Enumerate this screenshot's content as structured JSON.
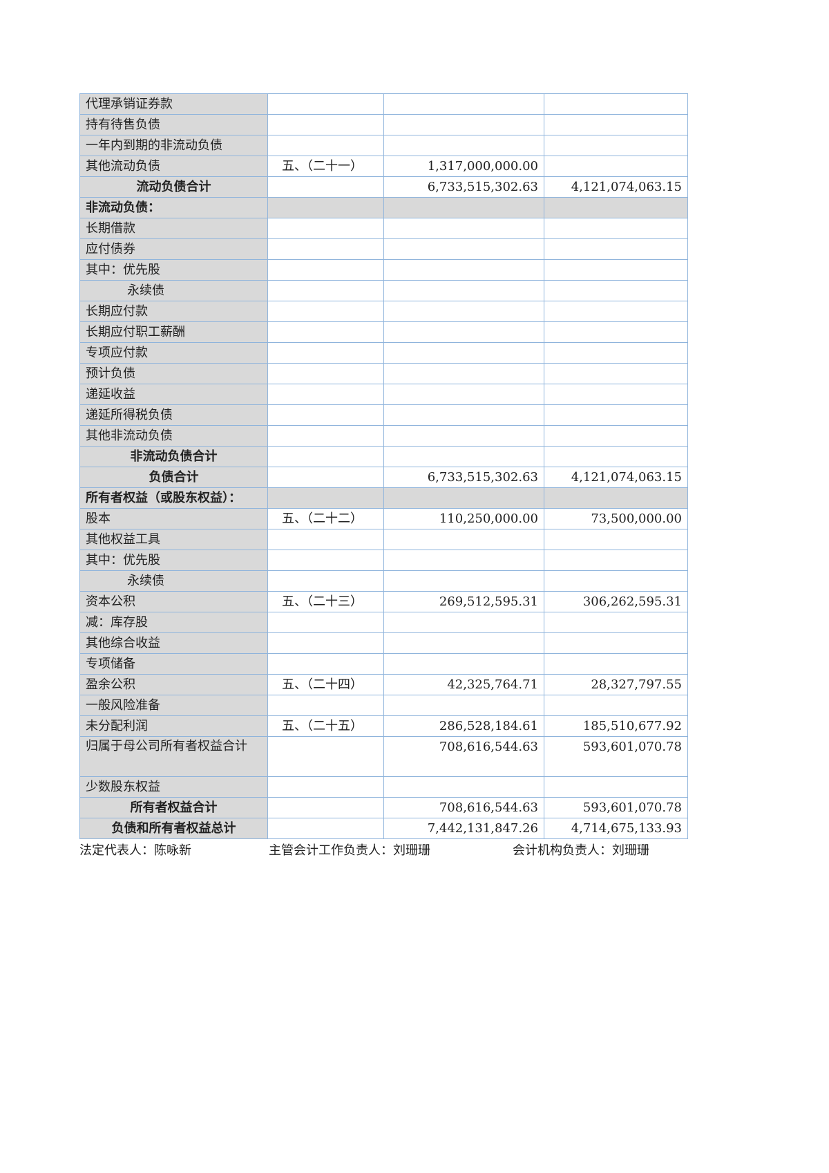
{
  "rows": [
    {
      "label": "代理承销证券款",
      "note": "",
      "current": "",
      "prior": "",
      "type": "normal"
    },
    {
      "label": "持有待售负债",
      "note": "",
      "current": "",
      "prior": "",
      "type": "normal"
    },
    {
      "label": "一年内到期的非流动负债",
      "note": "",
      "current": "",
      "prior": "",
      "type": "normal"
    },
    {
      "label": "其他流动负债",
      "note": "五、（二十一）",
      "current": "1,317,000,000.00",
      "prior": "",
      "type": "normal"
    },
    {
      "label": "流动负债合计",
      "note": "",
      "current": "6,733,515,302.63",
      "prior": "4,121,074,063.15",
      "type": "total"
    },
    {
      "label": "非流动负债：",
      "note": "",
      "current": "",
      "prior": "",
      "type": "section"
    },
    {
      "label": "长期借款",
      "note": "",
      "current": "",
      "prior": "",
      "type": "normal"
    },
    {
      "label": "应付债券",
      "note": "",
      "current": "",
      "prior": "",
      "type": "normal"
    },
    {
      "label": "其中：优先股",
      "note": "",
      "current": "",
      "prior": "",
      "type": "normal"
    },
    {
      "label": "永续债",
      "note": "",
      "current": "",
      "prior": "",
      "type": "indent"
    },
    {
      "label": "长期应付款",
      "note": "",
      "current": "",
      "prior": "",
      "type": "normal"
    },
    {
      "label": "长期应付职工薪酬",
      "note": "",
      "current": "",
      "prior": "",
      "type": "normal"
    },
    {
      "label": "专项应付款",
      "note": "",
      "current": "",
      "prior": "",
      "type": "normal"
    },
    {
      "label": "预计负债",
      "note": "",
      "current": "",
      "prior": "",
      "type": "normal"
    },
    {
      "label": "递延收益",
      "note": "",
      "current": "",
      "prior": "",
      "type": "normal"
    },
    {
      "label": "递延所得税负债",
      "note": "",
      "current": "",
      "prior": "",
      "type": "normal"
    },
    {
      "label": "其他非流动负债",
      "note": "",
      "current": "",
      "prior": "",
      "type": "normal"
    },
    {
      "label": "非流动负债合计",
      "note": "",
      "current": "",
      "prior": "",
      "type": "total"
    },
    {
      "label": "负债合计",
      "note": "",
      "current": "6,733,515,302.63",
      "prior": "4,121,074,063.15",
      "type": "total"
    },
    {
      "label": "所有者权益（或股东权益）：",
      "note": "",
      "current": "",
      "prior": "",
      "type": "section"
    },
    {
      "label": "股本",
      "note": "五、（二十二）",
      "current": "110,250,000.00",
      "prior": "73,500,000.00",
      "type": "normal"
    },
    {
      "label": "其他权益工具",
      "note": "",
      "current": "",
      "prior": "",
      "type": "normal"
    },
    {
      "label": "其中：优先股",
      "note": "",
      "current": "",
      "prior": "",
      "type": "normal"
    },
    {
      "label": "永续债",
      "note": "",
      "current": "",
      "prior": "",
      "type": "indent"
    },
    {
      "label": "资本公积",
      "note": "五、（二十三）",
      "current": "269,512,595.31",
      "prior": "306,262,595.31",
      "type": "normal"
    },
    {
      "label": "减：库存股",
      "note": "",
      "current": "",
      "prior": "",
      "type": "normal"
    },
    {
      "label": "其他综合收益",
      "note": "",
      "current": "",
      "prior": "",
      "type": "normal"
    },
    {
      "label": "专项储备",
      "note": "",
      "current": "",
      "prior": "",
      "type": "normal"
    },
    {
      "label": "盈余公积",
      "note": "五、（二十四）",
      "current": "42,325,764.71",
      "prior": "28,327,797.55",
      "type": "normal"
    },
    {
      "label": "一般风险准备",
      "note": "",
      "current": "",
      "prior": "",
      "type": "normal"
    },
    {
      "label": "未分配利润",
      "note": "五、（二十五）",
      "current": "286,528,184.61",
      "prior": "185,510,677.92",
      "type": "normal"
    },
    {
      "label": "归属于母公司所有者权益合计",
      "note": "",
      "current": "708,616,544.63",
      "prior": "593,601,070.78",
      "type": "tall"
    },
    {
      "label": "少数股东权益",
      "note": "",
      "current": "",
      "prior": "",
      "type": "normal"
    },
    {
      "label": "所有者权益合计",
      "note": "",
      "current": "708,616,544.63",
      "prior": "593,601,070.78",
      "type": "total"
    },
    {
      "label": "负债和所有者权益总计",
      "note": "",
      "current": "7,442,131,847.26",
      "prior": "4,714,675,133.93",
      "type": "total"
    }
  ],
  "footer": {
    "legal_rep": "法定代表人：陈咏新",
    "accounting_head": "主管会计工作负责人：刘珊珊",
    "accounting_org_head": "会计机构负责人：刘珊珊"
  }
}
